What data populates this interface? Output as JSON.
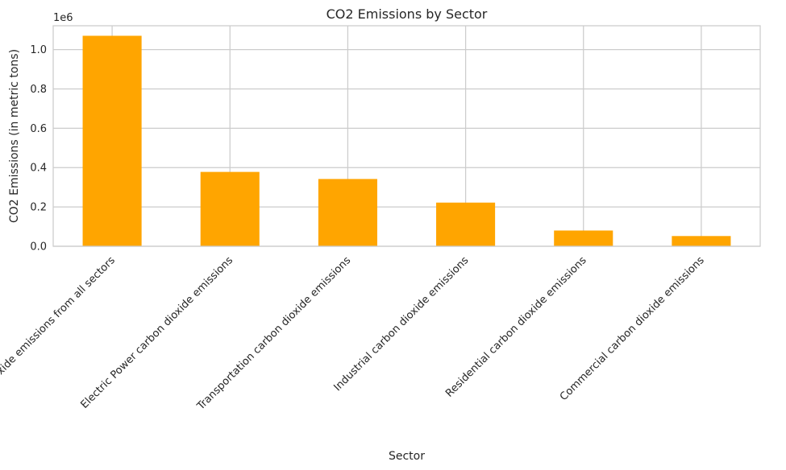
{
  "chart_data": {
    "type": "bar",
    "title": "CO2 Emissions by Sector",
    "xlabel": "Sector",
    "ylabel": "CO2 Emissions (in metric tons)",
    "offset_text": "1e6",
    "categories": [
      "Total carbon dioxide emissions from all sectors",
      "Electric Power carbon dioxide emissions",
      "Transportation carbon dioxide emissions",
      "Industrial carbon dioxide emissions",
      "Residential carbon dioxide emissions",
      "Commercial carbon dioxide emissions"
    ],
    "values": [
      1070000,
      378000,
      342000,
      222000,
      80000,
      52000
    ],
    "ylim": [
      0,
      1121000
    ],
    "yticks": [
      0,
      200000,
      400000,
      600000,
      800000,
      1000000
    ],
    "ytick_labels": [
      "0.0",
      "0.2",
      "0.4",
      "0.6",
      "0.8",
      "1.0"
    ],
    "bar_color": "#ffa500",
    "grid": true,
    "legend": "none"
  }
}
